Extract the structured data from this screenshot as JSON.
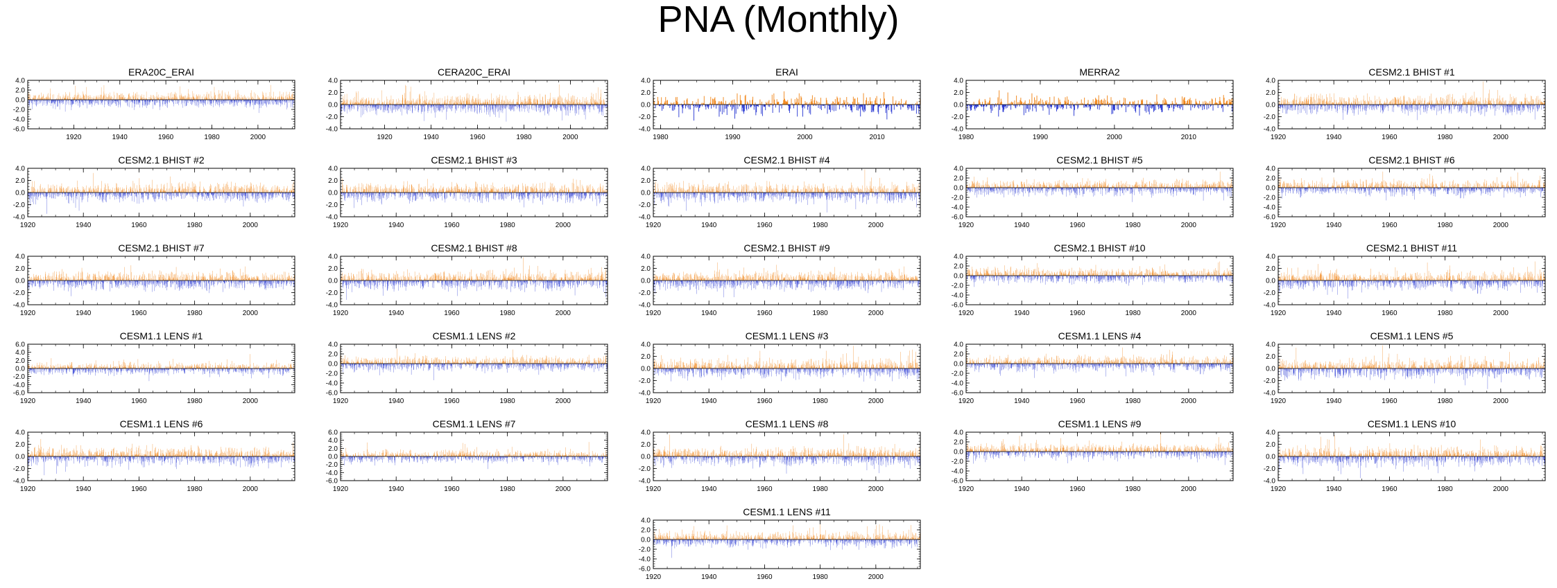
{
  "title": "PNA (Monthly)",
  "colors": {
    "positive": "#f07f0c",
    "negative": "#1f2fd0",
    "frame": "#000000"
  },
  "chart_data": [
    {
      "type": "bar",
      "title": "ERA20C_ERAI",
      "x_start": 1900,
      "x_end": 2015,
      "xticks": [
        1920,
        1940,
        1960,
        1980,
        2000
      ],
      "ylim": [
        -6,
        4
      ],
      "yticks": [
        "4.0",
        "2.0",
        "0.0",
        "-2.0",
        "-4.0",
        "-6.0"
      ],
      "seed": 11,
      "values": []
    },
    {
      "type": "bar",
      "title": "CERA20C_ERAI",
      "x_start": 1901,
      "x_end": 2015,
      "xticks": [
        1920,
        1940,
        1960,
        1980,
        2000
      ],
      "ylim": [
        -4,
        4
      ],
      "yticks": [
        "4.0",
        "2.0",
        "0.0",
        "-2.0",
        "-4.0"
      ],
      "seed": 12,
      "values": []
    },
    {
      "type": "bar",
      "title": "ERAI",
      "x_start": 1979,
      "x_end": 2015,
      "xticks": [
        1980,
        1990,
        2000,
        2010
      ],
      "ylim": [
        -4,
        4
      ],
      "yticks": [
        "4.0",
        "2.0",
        "0.0",
        "-2.0",
        "-4.0"
      ],
      "seed": 13,
      "values": []
    },
    {
      "type": "bar",
      "title": "MERRA2",
      "x_start": 1980,
      "x_end": 2015,
      "xticks": [
        1980,
        1990,
        2000,
        2010
      ],
      "ylim": [
        -4,
        4
      ],
      "yticks": [
        "4.0",
        "2.0",
        "0.0",
        "-2.0",
        "-4.0"
      ],
      "seed": 14,
      "values": []
    },
    {
      "type": "bar",
      "title": "CESM2.1 BHIST #1",
      "x_start": 1920,
      "x_end": 2015,
      "xticks": [
        1920,
        1940,
        1960,
        1980,
        2000
      ],
      "ylim": [
        -4,
        4
      ],
      "yticks": [
        "4.0",
        "2.0",
        "0.0",
        "-2.0",
        "-4.0"
      ],
      "seed": 15,
      "values": []
    },
    {
      "type": "bar",
      "title": "CESM2.1 BHIST #2",
      "x_start": 1920,
      "x_end": 2015,
      "xticks": [
        1920,
        1940,
        1960,
        1980,
        2000
      ],
      "ylim": [
        -4,
        4
      ],
      "yticks": [
        "4.0",
        "2.0",
        "0.0",
        "-2.0",
        "-4.0"
      ],
      "seed": 16,
      "values": []
    },
    {
      "type": "bar",
      "title": "CESM2.1 BHIST #3",
      "x_start": 1920,
      "x_end": 2015,
      "xticks": [
        1920,
        1940,
        1960,
        1980,
        2000
      ],
      "ylim": [
        -4,
        4
      ],
      "yticks": [
        "4.0",
        "2.0",
        "0.0",
        "-2.0",
        "-4.0"
      ],
      "seed": 17,
      "values": []
    },
    {
      "type": "bar",
      "title": "CESM2.1 BHIST #4",
      "x_start": 1920,
      "x_end": 2015,
      "xticks": [
        1920,
        1940,
        1960,
        1980,
        2000
      ],
      "ylim": [
        -4,
        4
      ],
      "yticks": [
        "4.0",
        "2.0",
        "0.0",
        "-2.0",
        "-4.0"
      ],
      "seed": 18,
      "values": []
    },
    {
      "type": "bar",
      "title": "CESM2.1 BHIST #5",
      "x_start": 1920,
      "x_end": 2015,
      "xticks": [
        1920,
        1940,
        1960,
        1980,
        2000
      ],
      "ylim": [
        -6,
        4
      ],
      "yticks": [
        "4.0",
        "2.0",
        "0.0",
        "-2.0",
        "-4.0",
        "-6.0"
      ],
      "seed": 19,
      "values": []
    },
    {
      "type": "bar",
      "title": "CESM2.1 BHIST #6",
      "x_start": 1920,
      "x_end": 2015,
      "xticks": [
        1920,
        1940,
        1960,
        1980,
        2000
      ],
      "ylim": [
        -6,
        4
      ],
      "yticks": [
        "4.0",
        "2.0",
        "0.0",
        "-2.0",
        "-4.0",
        "-6.0"
      ],
      "seed": 20,
      "values": []
    },
    {
      "type": "bar",
      "title": "CESM2.1 BHIST #7",
      "x_start": 1920,
      "x_end": 2015,
      "xticks": [
        1920,
        1940,
        1960,
        1980,
        2000
      ],
      "ylim": [
        -4,
        4
      ],
      "yticks": [
        "4.0",
        "2.0",
        "0.0",
        "-2.0",
        "-4.0"
      ],
      "seed": 21,
      "values": []
    },
    {
      "type": "bar",
      "title": "CESM2.1 BHIST #8",
      "x_start": 1920,
      "x_end": 2015,
      "xticks": [
        1920,
        1940,
        1960,
        1980,
        2000
      ],
      "ylim": [
        -4,
        4
      ],
      "yticks": [
        "4.0",
        "2.0",
        "0.0",
        "-2.0",
        "-4.0"
      ],
      "seed": 22,
      "values": []
    },
    {
      "type": "bar",
      "title": "CESM2.1 BHIST #9",
      "x_start": 1920,
      "x_end": 2015,
      "xticks": [
        1920,
        1940,
        1960,
        1980,
        2000
      ],
      "ylim": [
        -4,
        4
      ],
      "yticks": [
        "4.0",
        "2.0",
        "0.0",
        "-2.0",
        "-4.0"
      ],
      "seed": 23,
      "values": []
    },
    {
      "type": "bar",
      "title": "CESM2.1 BHIST #10",
      "x_start": 1920,
      "x_end": 2015,
      "xticks": [
        1920,
        1940,
        1960,
        1980,
        2000
      ],
      "ylim": [
        -6,
        4
      ],
      "yticks": [
        "4.0",
        "2.0",
        "0.0",
        "-2.0",
        "-4.0",
        "-6.0"
      ],
      "seed": 24,
      "values": []
    },
    {
      "type": "bar",
      "title": "CESM2.1 BHIST #11",
      "x_start": 1920,
      "x_end": 2015,
      "xticks": [
        1920,
        1940,
        1960,
        1980,
        2000
      ],
      "ylim": [
        -4,
        4
      ],
      "yticks": [
        "4.0",
        "2.0",
        "0.0",
        "-2.0",
        "-4.0"
      ],
      "seed": 25,
      "values": []
    },
    {
      "type": "bar",
      "title": "CESM1.1 LENS #1",
      "x_start": 1920,
      "x_end": 2015,
      "xticks": [
        1920,
        1940,
        1960,
        1980,
        2000
      ],
      "ylim": [
        -6,
        6
      ],
      "yticks": [
        "6.0",
        "4.0",
        "2.0",
        "0.0",
        "-2.0",
        "-4.0",
        "-6.0"
      ],
      "seed": 26,
      "values": []
    },
    {
      "type": "bar",
      "title": "CESM1.1 LENS #2",
      "x_start": 1920,
      "x_end": 2015,
      "xticks": [
        1920,
        1940,
        1960,
        1980,
        2000
      ],
      "ylim": [
        -6,
        4
      ],
      "yticks": [
        "4.0",
        "2.0",
        "0.0",
        "-2.0",
        "-4.0",
        "-6.0"
      ],
      "seed": 27,
      "values": []
    },
    {
      "type": "bar",
      "title": "CESM1.1 LENS #3",
      "x_start": 1920,
      "x_end": 2015,
      "xticks": [
        1920,
        1940,
        1960,
        1980,
        2000
      ],
      "ylim": [
        -4,
        4
      ],
      "yticks": [
        "4.0",
        "2.0",
        "0.0",
        "-2.0",
        "-4.0"
      ],
      "seed": 28,
      "values": []
    },
    {
      "type": "bar",
      "title": "CESM1.1 LENS #4",
      "x_start": 1920,
      "x_end": 2015,
      "xticks": [
        1920,
        1940,
        1960,
        1980,
        2000
      ],
      "ylim": [
        -6,
        4
      ],
      "yticks": [
        "4.0",
        "2.0",
        "0.0",
        "-2.0",
        "-4.0",
        "-6.0"
      ],
      "seed": 29,
      "values": []
    },
    {
      "type": "bar",
      "title": "CESM1.1 LENS #5",
      "x_start": 1920,
      "x_end": 2015,
      "xticks": [
        1920,
        1940,
        1960,
        1980,
        2000
      ],
      "ylim": [
        -4,
        4
      ],
      "yticks": [
        "4.0",
        "2.0",
        "0.0",
        "-2.0",
        "-4.0"
      ],
      "seed": 30,
      "values": []
    },
    {
      "type": "bar",
      "title": "CESM1.1 LENS #6",
      "x_start": 1920,
      "x_end": 2015,
      "xticks": [
        1920,
        1940,
        1960,
        1980,
        2000
      ],
      "ylim": [
        -4,
        4
      ],
      "yticks": [
        "4.0",
        "2.0",
        "0.0",
        "-2.0",
        "-4.0"
      ],
      "seed": 31,
      "values": []
    },
    {
      "type": "bar",
      "title": "CESM1.1 LENS #7",
      "x_start": 1920,
      "x_end": 2015,
      "xticks": [
        1920,
        1940,
        1960,
        1980,
        2000
      ],
      "ylim": [
        -6,
        6
      ],
      "yticks": [
        "6.0",
        "4.0",
        "2.0",
        "0.0",
        "-2.0",
        "-4.0",
        "-6.0"
      ],
      "seed": 32,
      "values": []
    },
    {
      "type": "bar",
      "title": "CESM1.1 LENS #8",
      "x_start": 1920,
      "x_end": 2015,
      "xticks": [
        1920,
        1940,
        1960,
        1980,
        2000
      ],
      "ylim": [
        -4,
        4
      ],
      "yticks": [
        "4.0",
        "2.0",
        "0.0",
        "-2.0",
        "-4.0"
      ],
      "seed": 33,
      "values": []
    },
    {
      "type": "bar",
      "title": "CESM1.1 LENS #9",
      "x_start": 1920,
      "x_end": 2015,
      "xticks": [
        1920,
        1940,
        1960,
        1980,
        2000
      ],
      "ylim": [
        -6,
        4
      ],
      "yticks": [
        "4.0",
        "2.0",
        "0.0",
        "-2.0",
        "-4.0",
        "-6.0"
      ],
      "seed": 34,
      "values": []
    },
    {
      "type": "bar",
      "title": "CESM1.1 LENS #10",
      "x_start": 1920,
      "x_end": 2015,
      "xticks": [
        1920,
        1940,
        1960,
        1980,
        2000
      ],
      "ylim": [
        -4,
        4
      ],
      "yticks": [
        "4.0",
        "2.0",
        "0.0",
        "-2.0",
        "-4.0"
      ],
      "seed": 35,
      "values": []
    },
    {
      "type": "bar",
      "title": "CESM1.1 LENS #11",
      "x_start": 1920,
      "x_end": 2015,
      "xticks": [
        1920,
        1940,
        1960,
        1980,
        2000
      ],
      "ylim": [
        -6,
        4
      ],
      "yticks": [
        "4.0",
        "2.0",
        "0.0",
        "-2.0",
        "-4.0",
        "-6.0"
      ],
      "seed": 36,
      "values": []
    }
  ]
}
